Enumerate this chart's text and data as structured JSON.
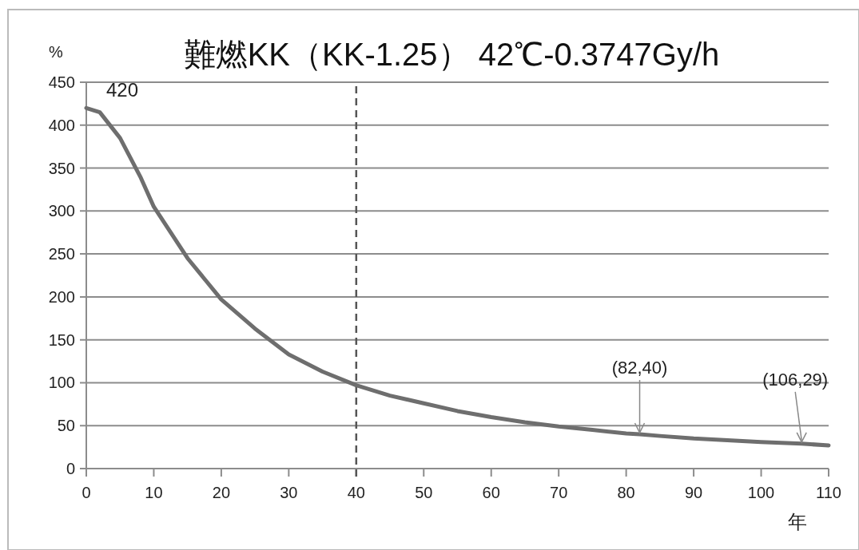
{
  "chart_data": {
    "type": "line",
    "title": "難燃KK（KK-1.25） 42℃-0.3747Gy/h",
    "ylabel": "%",
    "xlabel": "年",
    "x": [
      0,
      2,
      5,
      8,
      10,
      15,
      20,
      25,
      30,
      35,
      40,
      45,
      50,
      55,
      60,
      65,
      70,
      75,
      80,
      82,
      85,
      90,
      95,
      100,
      106,
      110
    ],
    "series": [
      {
        "color": "#6e6e6e",
        "values": [
          420,
          415,
          385,
          340,
          305,
          245,
          197,
          163,
          133,
          113,
          97,
          85,
          76,
          67,
          60,
          54,
          49,
          45,
          41,
          40,
          38,
          35,
          33,
          31,
          29,
          27
        ]
      }
    ],
    "xlim": [
      0,
      110
    ],
    "xticks": [
      0,
      10,
      20,
      30,
      40,
      50,
      60,
      70,
      80,
      90,
      100,
      110
    ],
    "ylim": [
      0,
      450
    ],
    "yticks": [
      0,
      50,
      100,
      150,
      200,
      250,
      300,
      350,
      400,
      450
    ],
    "grid": "y",
    "marker": "none",
    "line_style": "solid",
    "ref_lines": [
      {
        "axis": "x",
        "value": 40,
        "line_style": "dashed",
        "color": "#555555"
      }
    ],
    "annotations": [
      {
        "text": "420",
        "x": 0,
        "y": 420
      },
      {
        "text": "(82,40)",
        "x": 82,
        "y": 40
      },
      {
        "text": "(106,29)",
        "x": 106,
        "y": 29
      }
    ]
  }
}
